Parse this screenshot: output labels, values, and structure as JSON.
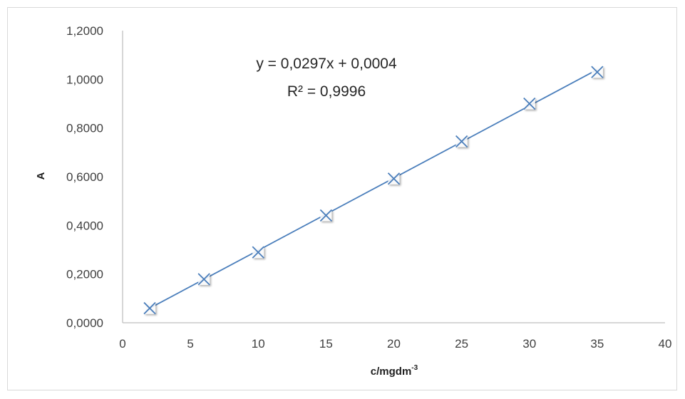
{
  "chart_data": {
    "type": "scatter",
    "x": [
      2,
      6,
      10,
      15,
      20,
      25,
      30,
      35
    ],
    "series": [
      {
        "values": [
          0.0598,
          0.179,
          0.2895,
          0.4408,
          0.592,
          0.745,
          0.9,
          1.03
        ]
      }
    ],
    "trendline": {
      "slope": 0.0297,
      "intercept": 0.0004,
      "x_range": [
        2,
        35
      ]
    },
    "equation_label": "y = 0,0297x + 0,0004",
    "r2_label": "R² = 0,9996",
    "xlabel": "c/mgdm",
    "xlabel_sup": "-3",
    "ylabel": "A",
    "xlim": [
      0,
      40
    ],
    "ylim": [
      0,
      1.2
    ],
    "x_ticks": [
      "0",
      "5",
      "10",
      "15",
      "20",
      "25",
      "30",
      "35",
      "40"
    ],
    "y_ticks": [
      "0,0000",
      "0,2000",
      "0,4000",
      "0,6000",
      "0,8000",
      "1,0000",
      "1,2000"
    ],
    "grid": false,
    "legend": "none",
    "marker": "x",
    "colors": {
      "series": "#4a7ebb",
      "axis": "#bfbfbf"
    }
  }
}
